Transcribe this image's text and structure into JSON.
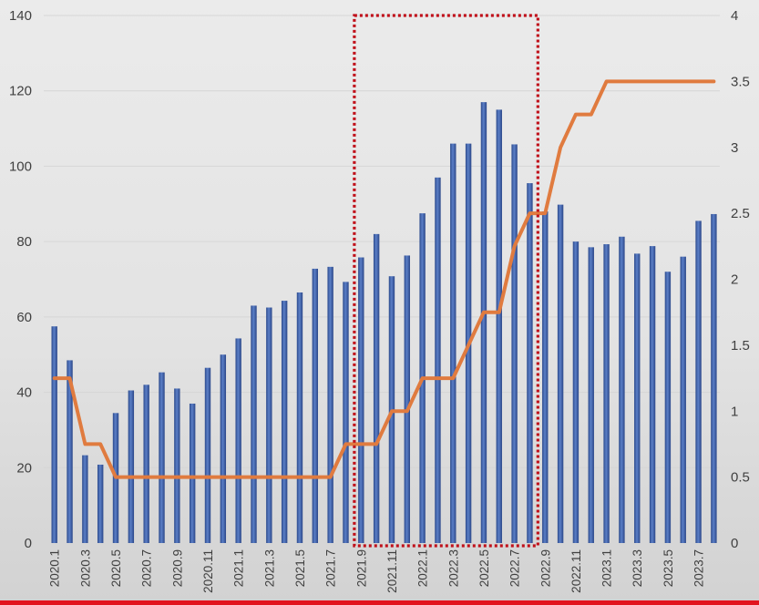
{
  "chart_data": {
    "type": "bar",
    "categories": [
      "2020.1",
      "2020.2",
      "2020.3",
      "2020.4",
      "2020.5",
      "2020.6",
      "2020.7",
      "2020.8",
      "2020.9",
      "2020.10",
      "2020.11",
      "2020.12",
      "2021.1",
      "2021.2",
      "2021.3",
      "2021.4",
      "2021.5",
      "2021.6",
      "2021.7",
      "2021.8",
      "2021.9",
      "2021.10",
      "2021.11",
      "2021.12",
      "2022.1",
      "2022.2",
      "2022.3",
      "2022.4",
      "2022.5",
      "2022.6",
      "2022.7",
      "2022.8",
      "2022.9",
      "2022.10",
      "2022.11",
      "2022.12",
      "2023.1",
      "2023.2",
      "2023.3",
      "2023.4",
      "2023.5",
      "2023.6",
      "2023.7",
      "2023.8"
    ],
    "x_tick_labels": [
      "2020.1",
      "2020.3",
      "2020.5",
      "2020.7",
      "2020.9",
      "2020.11",
      "2021.1",
      "2021.3",
      "2021.5",
      "2021.7",
      "2021.9",
      "2021.11",
      "2022.1",
      "2022.3",
      "2022.5",
      "2022.7",
      "2022.9",
      "2022.11",
      "2023.1",
      "2023.3",
      "2023.5",
      "2023.7"
    ],
    "series": [
      {
        "axis": "left",
        "kind": "bar",
        "color": "#3f5fa8",
        "values": [
          57.5,
          48.5,
          23.3,
          20.8,
          34.5,
          40.5,
          42,
          45.3,
          41,
          37,
          46.5,
          50,
          54.3,
          63,
          62.5,
          64.3,
          66.5,
          72.8,
          73.3,
          69.3,
          75.8,
          82,
          70.8,
          76.3,
          87.5,
          97,
          106,
          106,
          117,
          115,
          105.8,
          95.5,
          88,
          89.8,
          80,
          78.5,
          79.3,
          81.3,
          76.8,
          78.8,
          72,
          76,
          85.5,
          87.3
        ]
      },
      {
        "axis": "right",
        "kind": "line",
        "color": "#e07b3f",
        "values": [
          1.25,
          1.25,
          0.75,
          0.75,
          0.5,
          0.5,
          0.5,
          0.5,
          0.5,
          0.5,
          0.5,
          0.5,
          0.5,
          0.5,
          0.5,
          0.5,
          0.5,
          0.5,
          0.5,
          0.75,
          0.75,
          0.75,
          1,
          1,
          1.25,
          1.25,
          1.25,
          1.5,
          1.75,
          1.75,
          2.25,
          2.5,
          2.5,
          3,
          3.25,
          3.25,
          3.5,
          3.5,
          3.5,
          3.5,
          3.5,
          3.5,
          3.5,
          3.5
        ]
      }
    ],
    "y_left": {
      "lim": [
        0,
        140
      ],
      "ticks": [
        "0",
        "20",
        "40",
        "60",
        "80",
        "100",
        "120",
        "140"
      ]
    },
    "y_right": {
      "lim": [
        0,
        4
      ],
      "ticks": [
        "0",
        "0.5",
        "1",
        "1.5",
        "2",
        "2.5",
        "3",
        "3.5",
        "4"
      ]
    },
    "highlight": {
      "from": "2021.9",
      "to": "2022.8",
      "style": "dotted",
      "color": "#c0101a"
    },
    "grid": true,
    "background_gradient": [
      "#ebebeb",
      "#e3e3e3",
      "#d2d2d2"
    ],
    "bottom_rule_color": "#e2141e"
  }
}
